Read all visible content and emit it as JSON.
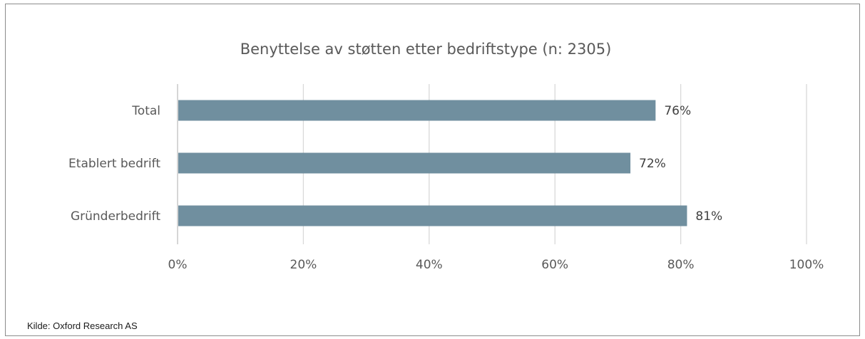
{
  "source": "Kilde: Oxford Research AS",
  "chart_data": {
    "type": "bar",
    "orientation": "horizontal",
    "title": "Benyttelse av støtten etter bedriftstype (n: 2305)",
    "categories": [
      "Total",
      "Etablert bedrift",
      "Gründerbedrift"
    ],
    "values": [
      76,
      72,
      81
    ],
    "data_labels": [
      "76%",
      "72%",
      "81%"
    ],
    "x_ticks": [
      "0%",
      "20%",
      "40%",
      "60%",
      "80%",
      "100%"
    ],
    "xlim": [
      0,
      100
    ],
    "grid": true,
    "legend": "none",
    "bar_color": "#708f9f",
    "grid_color": "#d9d9d9",
    "axis_color": "#bfbfbf"
  }
}
